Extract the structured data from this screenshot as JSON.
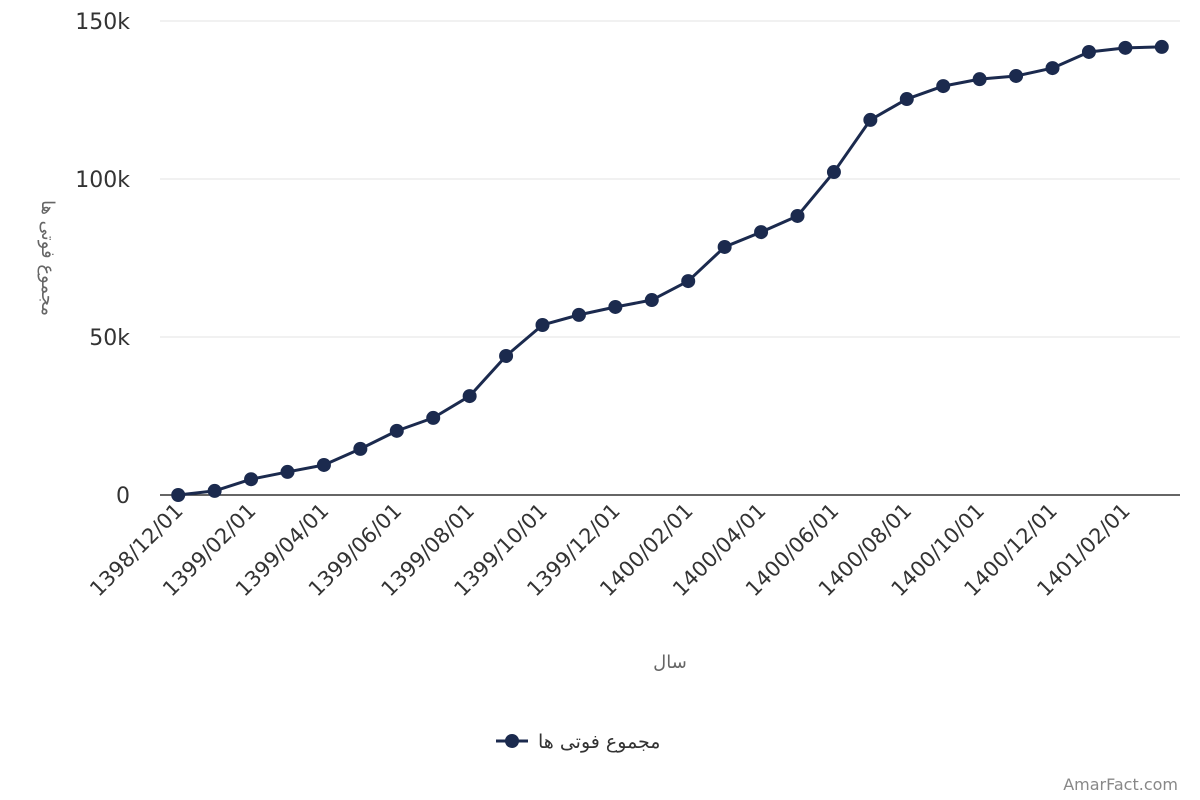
{
  "chart_data": {
    "type": "line",
    "y_label": "مجموع فوتی ها",
    "x_label": "سال",
    "categories": [
      "1398/12/01",
      null,
      "1399/02/01",
      null,
      "1399/04/01",
      null,
      "1399/06/01",
      null,
      "1399/08/01",
      null,
      "1399/10/01",
      null,
      "1399/12/01",
      null,
      "1400/02/01",
      null,
      "1400/04/01",
      null,
      "1400/06/01",
      null,
      "1400/08/01",
      null,
      "1400/10/01",
      null,
      "1400/12/01",
      null,
      "1401/02/01",
      null
    ],
    "series": [
      {
        "name": "مجموع فوتی ها",
        "color": "#1b2a4e",
        "values": [
          0,
          1300,
          5000,
          7300,
          9500,
          14600,
          20300,
          24400,
          31300,
          44000,
          53800,
          57000,
          59500,
          61700,
          67700,
          78500,
          83200,
          88300,
          102200,
          118700,
          125300,
          129400,
          131600,
          132600,
          135100,
          140200,
          141500,
          141800
        ]
      }
    ],
    "ylim": [
      0,
      150000
    ],
    "yticks": [
      {
        "value": 0,
        "label": "0"
      },
      {
        "value": 50000,
        "label": "50k"
      },
      {
        "value": 100000,
        "label": "100k"
      },
      {
        "value": 150000,
        "label": "150k"
      }
    ],
    "grid": true,
    "legend": "bottom",
    "watermark": "AmarFact.com"
  }
}
